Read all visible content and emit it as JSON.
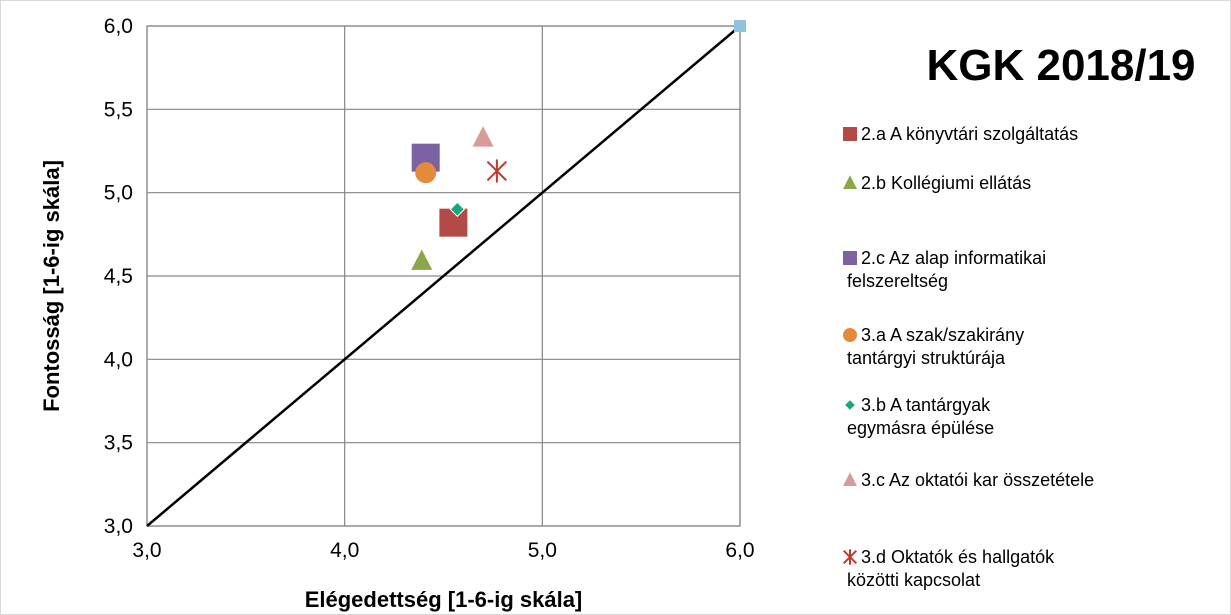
{
  "chart_data": {
    "type": "scatter",
    "title": "KGK 2018/19",
    "xlabel": "Elégedettség [1-6-ig skála]",
    "ylabel": "Fontosság [1-6-ig skála]",
    "xlim": [
      3.0,
      6.0
    ],
    "ylim": [
      3.0,
      6.0
    ],
    "x_ticks": [
      "3,0",
      "4,0",
      "5,0",
      "6,0"
    ],
    "y_ticks": [
      "3,0",
      "3,5",
      "4,0",
      "4,5",
      "5,0",
      "5,5",
      "6,0"
    ],
    "grid": true,
    "legend_position": "right",
    "reference_line": {
      "from": [
        3.0,
        3.0
      ],
      "to": [
        6.0,
        6.0
      ],
      "color": "#000000"
    },
    "corner_point": {
      "x": 6.0,
      "y": 6.0,
      "color": "#8fc3dc",
      "marker": "square"
    },
    "series": [
      {
        "name": "2.a  A könyvtári szolgáltatás",
        "legend_lines": [
          "2.a  A könyvtári szolgáltatás"
        ],
        "x": 4.55,
        "y": 4.82,
        "color": "#b34a47",
        "marker": "square",
        "size": "large"
      },
      {
        "name": "2.b  Kollégiumi ellátás",
        "legend_lines": [
          "2.b  Kollégiumi ellátás"
        ],
        "x": 4.39,
        "y": 4.59,
        "color": "#8aa84a",
        "marker": "triangle",
        "size": "medium"
      },
      {
        "name": "2.c  Az alap informatikai felszereltség",
        "legend_lines": [
          "2.c  Az alap informatikai",
          "felszereltség"
        ],
        "x": 4.41,
        "y": 5.21,
        "color": "#7b62a3",
        "marker": "square",
        "size": "large"
      },
      {
        "name": "3.a  A  szak/szakirány tantárgyi struktúrája",
        "legend_lines": [
          "3.a  A  szak/szakirány",
          "tantárgyi struktúrája"
        ],
        "x": 4.41,
        "y": 5.12,
        "color": "#e38a3b",
        "marker": "circle",
        "size": "medium"
      },
      {
        "name": "3.b  A tantárgyak egymásra épülése",
        "legend_lines": [
          "3.b  A tantárgyak",
          "egymásra épülése"
        ],
        "x": 4.57,
        "y": 4.9,
        "color": "#1aa67a",
        "marker": "diamond",
        "size": "small"
      },
      {
        "name": "3.c  Az oktatói kar összetétele",
        "legend_lines": [
          "3.c  Az oktatói kar összetétele"
        ],
        "x": 4.7,
        "y": 5.33,
        "color": "#d99a9a",
        "marker": "triangle",
        "size": "medium"
      },
      {
        "name": "3.d  Oktatók és hallgatók közötti kapcsolat",
        "legend_lines": [
          "3.d  Oktatók és hallgatók",
          "közötti kapcsolat"
        ],
        "x": 4.77,
        "y": 5.13,
        "color": "#c0392b",
        "marker": "star",
        "size": "medium"
      }
    ]
  }
}
